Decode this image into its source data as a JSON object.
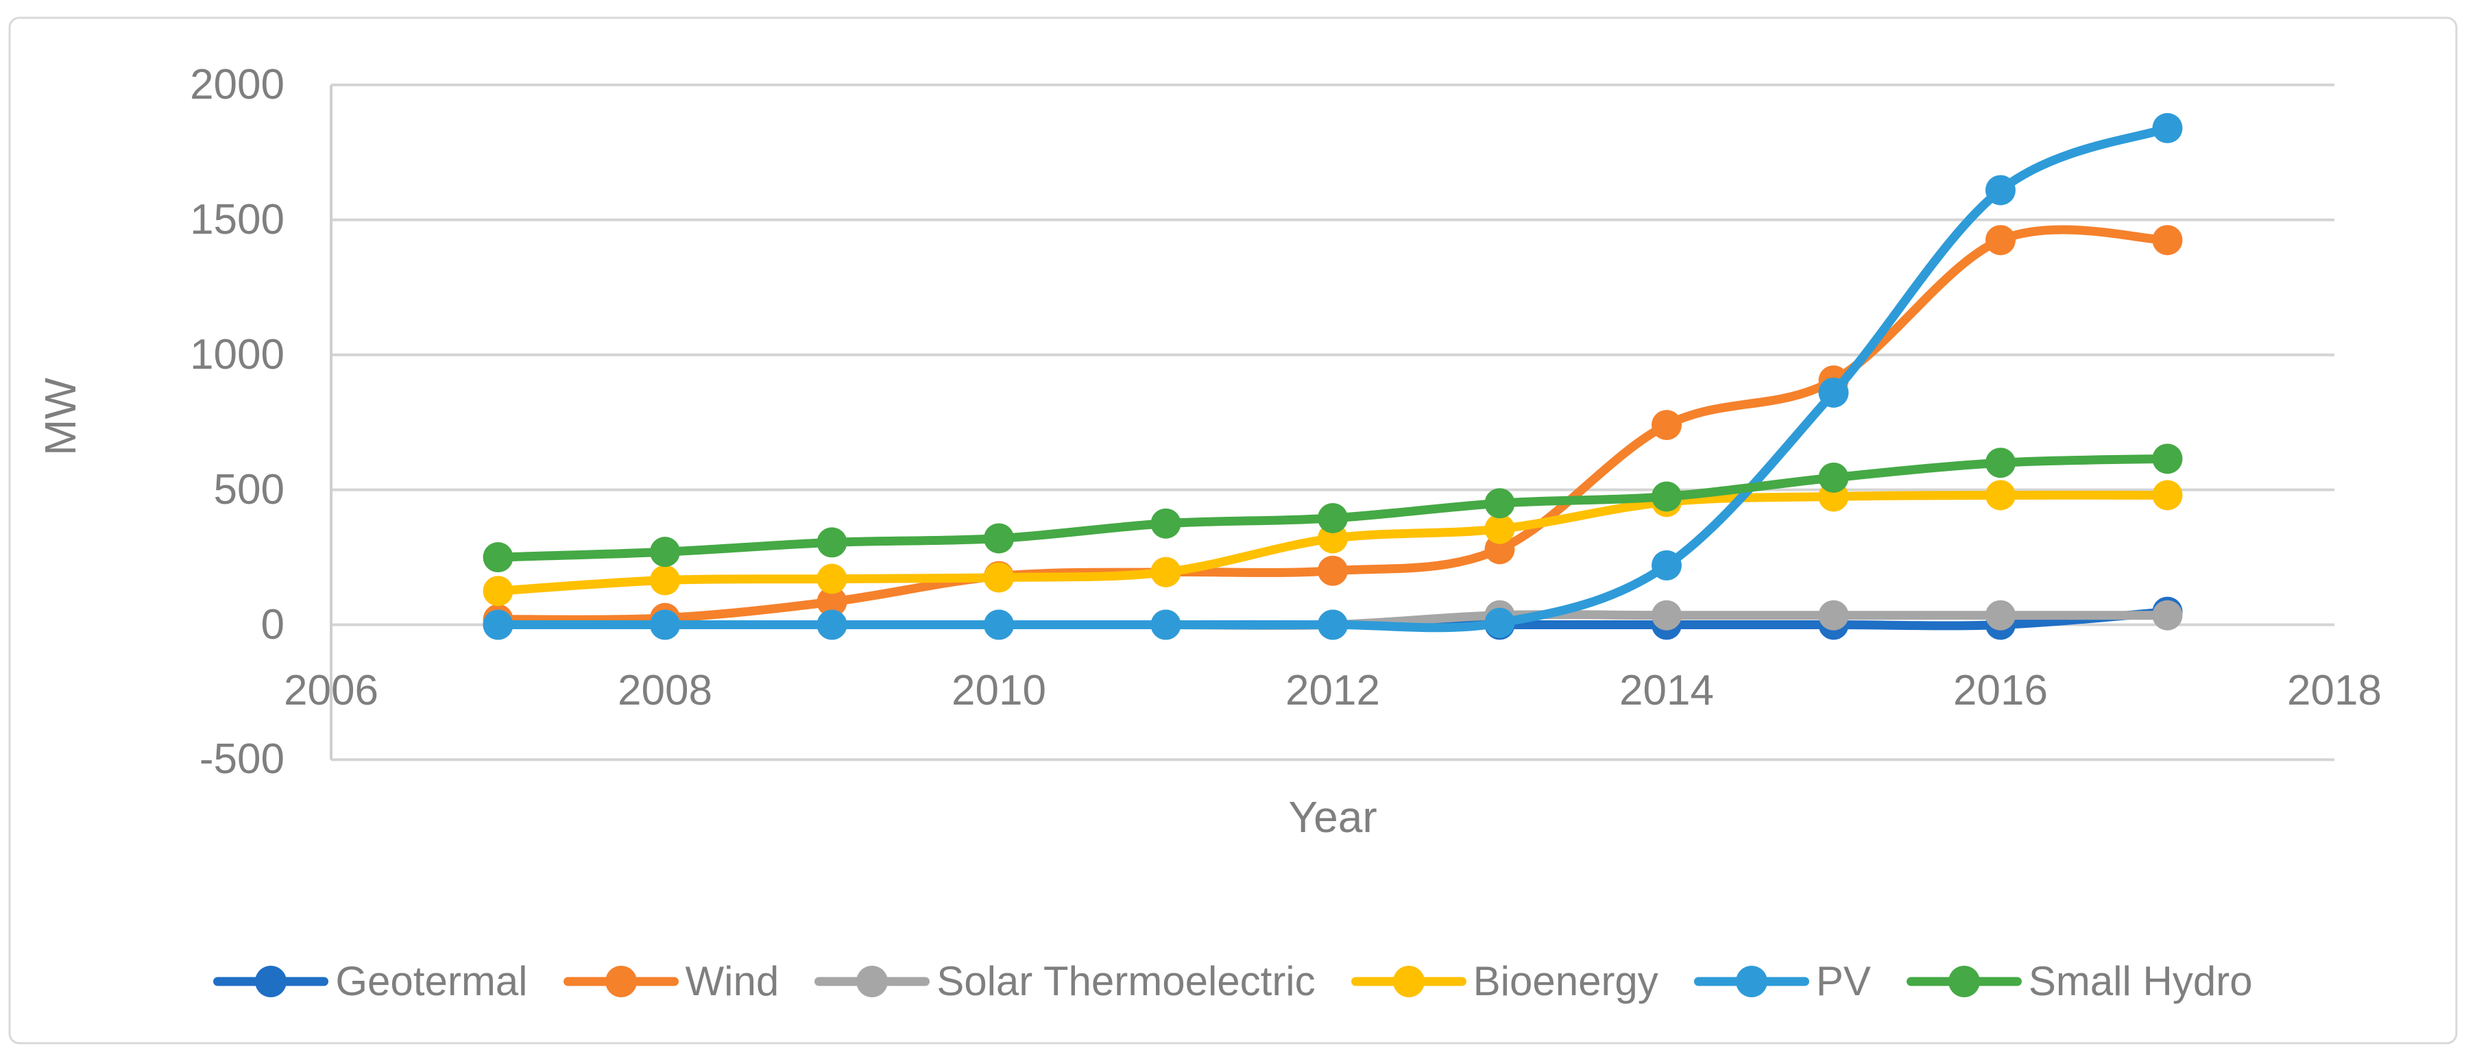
{
  "chart_data": {
    "type": "line",
    "title": "",
    "xlabel": "Year",
    "ylabel": "MW",
    "x": [
      2007,
      2008,
      2009,
      2010,
      2011,
      2012,
      2013,
      2014,
      2015,
      2016,
      2017
    ],
    "xlim": [
      2006,
      2018
    ],
    "ylim": [
      -500,
      2000
    ],
    "xticks": [
      2006,
      2008,
      2010,
      2012,
      2014,
      2016,
      2018
    ],
    "yticks": [
      -500,
      0,
      500,
      1000,
      1500,
      2000
    ],
    "grid": "horizontal-gridlines",
    "line_style": "smooth",
    "marker": "circle",
    "legend_position": "bottom",
    "series": [
      {
        "name": "Geotermal",
        "color": "#1F6FC5",
        "values": [
          0,
          0,
          0,
          0,
          0,
          0,
          0,
          0,
          0,
          0,
          48
        ]
      },
      {
        "name": "Wind",
        "color": "#F5812B",
        "values": [
          20,
          25,
          85,
          180,
          195,
          200,
          280,
          740,
          905,
          1425,
          1425
        ]
      },
      {
        "name": "Solar Thermoelectric",
        "color": "#A6A6A6",
        "values": [
          0,
          0,
          0,
          0,
          0,
          0,
          35,
          35,
          35,
          35,
          35
        ]
      },
      {
        "name": "Bioenergy",
        "color": "#FFC000",
        "values": [
          125,
          165,
          170,
          175,
          195,
          320,
          355,
          455,
          475,
          480,
          480
        ]
      },
      {
        "name": "PV",
        "color": "#2E9BD8",
        "values": [
          0,
          0,
          0,
          0,
          0,
          0,
          7,
          220,
          860,
          1610,
          1840
        ]
      },
      {
        "name": "Small Hydro",
        "color": "#45A945",
        "values": [
          250,
          270,
          305,
          320,
          375,
          395,
          450,
          475,
          545,
          600,
          615
        ]
      }
    ]
  },
  "colors": {
    "gridline": "#D4D4D4",
    "axis_line": "#CFCFCF",
    "text": "#7F7F7F",
    "frame_border": "#D9D9D9",
    "background": "#FFFFFF"
  }
}
